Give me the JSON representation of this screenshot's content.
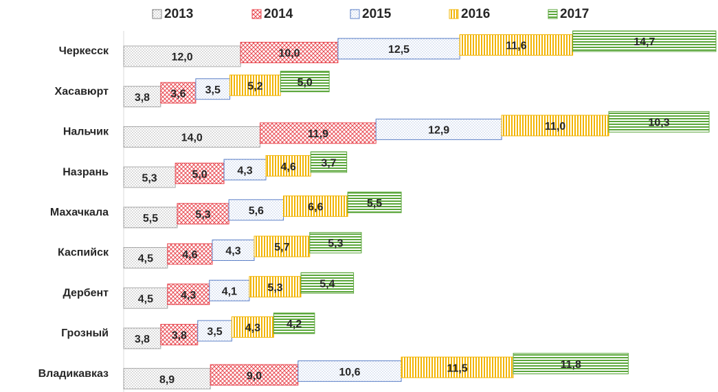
{
  "chart_data": {
    "type": "stacked-bar-horizontal",
    "categories": [
      "Черкесск",
      "Хасавюрт",
      "Нальчик",
      "Назрань",
      "Махачкала",
      "Каспийск",
      "Дербент",
      "Грозный",
      "Владикавказ"
    ],
    "series": [
      {
        "name": "2013",
        "color": "#7f7f7f",
        "values": [
          12.0,
          3.8,
          14.0,
          5.3,
          5.5,
          4.5,
          4.5,
          3.8,
          8.9
        ],
        "value_labels": [
          "12,0",
          "3,8",
          "14,0",
          "5,3",
          "5,5",
          "4,5",
          "4,5",
          "3,8",
          "8,9"
        ]
      },
      {
        "name": "2014",
        "color": "#e8474f",
        "values": [
          10.0,
          3.6,
          11.9,
          5.0,
          5.3,
          4.6,
          4.3,
          3.8,
          9.0
        ],
        "value_labels": [
          "10,0",
          "3,6",
          "11,9",
          "5,0",
          "5,3",
          "4,6",
          "4,3",
          "3,8",
          "9,0"
        ]
      },
      {
        "name": "2015",
        "color": "#5b7fc7",
        "values": [
          12.5,
          3.5,
          12.9,
          4.3,
          5.6,
          4.3,
          4.1,
          3.5,
          10.6
        ],
        "value_labels": [
          "12,5",
          "3,5",
          "12,9",
          "4,3",
          "5,6",
          "4,3",
          "4,1",
          "3,5",
          "10,6"
        ]
      },
      {
        "name": "2016",
        "color": "#f2b400",
        "values": [
          11.6,
          5.2,
          11.0,
          4.6,
          6.6,
          5.7,
          5.3,
          4.3,
          11.5
        ],
        "value_labels": [
          "11,6",
          "5,2",
          "11,0",
          "4,6",
          "6,6",
          "5,7",
          "5,3",
          "4,3",
          "11,5"
        ]
      },
      {
        "name": "2017",
        "color": "#5aa63a",
        "values": [
          14.7,
          5.0,
          10.3,
          3.7,
          5.5,
          5.3,
          5.4,
          4.2,
          11.8
        ],
        "value_labels": [
          "14,7",
          "5,0",
          "10,3",
          "3,7",
          "5,5",
          "5,3",
          "5,4",
          "4,2",
          "11,8"
        ]
      }
    ]
  }
}
